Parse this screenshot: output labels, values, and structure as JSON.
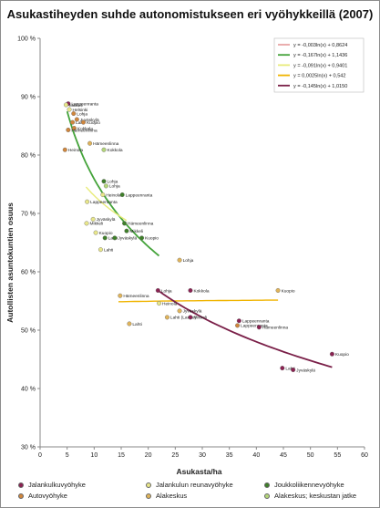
{
  "chart_data": {
    "type": "scatter",
    "title": "Asukastiheyden suhde autonomistukseen eri vyöhykkeillä (2007)",
    "xlabel": "Asukasta/ha",
    "ylabel": "Autollisten asuntokuntien osuus",
    "xlim": [
      0,
      60
    ],
    "ylim": [
      30,
      100
    ],
    "x_ticks": [
      "0",
      "5",
      "10",
      "15",
      "20",
      "25",
      "30",
      "35",
      "40",
      "45",
      "50",
      "55",
      "60"
    ],
    "y_ticks": [
      "30 %",
      "40 %",
      "50 %",
      "60 %",
      "70 %",
      "80 %",
      "90 %",
      "100 %"
    ],
    "grid": false,
    "zones": [
      {
        "key": "jalankulku",
        "name": "Jalankulkuvyöhyke",
        "color": "#8b2252"
      },
      {
        "key": "reuna",
        "name": "Jalankulun reunavyöhyke",
        "color": "#e8e68a"
      },
      {
        "key": "joukko",
        "name": "Joukkoliikennevyöhyke",
        "color": "#3f7f2a"
      },
      {
        "key": "auto",
        "name": "Autovyöhyke",
        "color": "#d0863c"
      },
      {
        "key": "alakeskus",
        "name": "Alakeskus",
        "color": "#e0b45a"
      },
      {
        "key": "alakeskus_jatke",
        "name": "Alakeskus; keskustan jatke",
        "color": "#b4d67a"
      }
    ],
    "trendlines": [
      {
        "label": "y = -0,003ln(x) + 0,8624",
        "color": "#e8a6a6"
      },
      {
        "label": "y = -0,167ln(x) + 1,1436",
        "color": "#44a33a"
      },
      {
        "label": "y = -0,091ln(x) + 0,9401",
        "color": "#e8eb7a"
      },
      {
        "label": "y = 0,0025ln(x) + 0,542",
        "color": "#f0b400"
      },
      {
        "label": "y = -0,145ln(x) + 1,0150",
        "color": "#7a1f48"
      }
    ],
    "points": [
      {
        "label": "Lappeenranta",
        "x": 5.2,
        "y": 88.8,
        "zone": "jalankulku"
      },
      {
        "label": "Helsinki",
        "x": 5.4,
        "y": 87.8,
        "zone": "reuna"
      },
      {
        "label": "Lohja",
        "x": 6.2,
        "y": 87.1,
        "zone": "auto"
      },
      {
        "label": "Mikkeli",
        "x": 4.8,
        "y": 88.6,
        "zone": "reuna"
      },
      {
        "label": "Jyväskylä",
        "x": 6.8,
        "y": 86.1,
        "zone": "auto"
      },
      {
        "label": "Lahti",
        "x": 6.0,
        "y": 85.6,
        "zone": "auto"
      },
      {
        "label": "Kuopio",
        "x": 8.0,
        "y": 85.6,
        "zone": "auto"
      },
      {
        "label": "Kokkola",
        "x": 6.3,
        "y": 84.6,
        "zone": "auto"
      },
      {
        "label": "Hämeenlinna",
        "x": 5.2,
        "y": 84.3,
        "zone": "auto"
      },
      {
        "label": "Hämeenlinna",
        "x": 9.2,
        "y": 82.0,
        "zone": "alakeskus"
      },
      {
        "label": "Heinola",
        "x": 4.6,
        "y": 80.9,
        "zone": "auto"
      },
      {
        "label": "Kokkola",
        "x": 11.8,
        "y": 80.9,
        "zone": "alakeskus_jatke"
      },
      {
        "label": "Lohja",
        "x": 11.8,
        "y": 75.5,
        "zone": "joukko"
      },
      {
        "label": "Lohja",
        "x": 12.2,
        "y": 74.7,
        "zone": "alakeskus_jatke"
      },
      {
        "label": "Heinola",
        "x": 11.6,
        "y": 73.2,
        "zone": "reuna"
      },
      {
        "label": "Lappeenranta",
        "x": 15.2,
        "y": 73.2,
        "zone": "joukko"
      },
      {
        "label": "Lappeenranta",
        "x": 8.7,
        "y": 72.0,
        "zone": "reuna"
      },
      {
        "label": "Jyväskylä",
        "x": 9.8,
        "y": 69.0,
        "zone": "reuna"
      },
      {
        "label": "Mikkeli",
        "x": 8.6,
        "y": 68.3,
        "zone": "reuna"
      },
      {
        "label": "Hämeenlinna",
        "x": 15.6,
        "y": 68.3,
        "zone": "joukko"
      },
      {
        "label": "Mikkeli",
        "x": 16.0,
        "y": 67.0,
        "zone": "joukko"
      },
      {
        "label": "Kuopio",
        "x": 10.3,
        "y": 66.7,
        "zone": "reuna"
      },
      {
        "label": "Lahti",
        "x": 12.0,
        "y": 65.8,
        "zone": "joukko"
      },
      {
        "label": "Jyväskylä",
        "x": 13.8,
        "y": 65.8,
        "zone": "joukko"
      },
      {
        "label": "Kuopio",
        "x": 18.8,
        "y": 65.8,
        "zone": "joukko"
      },
      {
        "label": "Lahti",
        "x": 11.2,
        "y": 63.8,
        "zone": "reuna"
      },
      {
        "label": "Lohja",
        "x": 25.8,
        "y": 62.0,
        "zone": "alakeskus"
      },
      {
        "label": "Hämeenlinna",
        "x": 14.8,
        "y": 55.9,
        "zone": "alakeskus"
      },
      {
        "label": "Lohja",
        "x": 21.8,
        "y": 56.8,
        "zone": "jalankulku"
      },
      {
        "label": "Kokkola",
        "x": 27.8,
        "y": 56.8,
        "zone": "jalankulku"
      },
      {
        "label": "Kuopio",
        "x": 44.0,
        "y": 56.8,
        "zone": "alakeskus"
      },
      {
        "label": "Heinola",
        "x": 22.0,
        "y": 54.6,
        "zone": "reuna"
      },
      {
        "label": "Jyväskylä",
        "x": 25.8,
        "y": 53.3,
        "zone": "alakeskus"
      },
      {
        "label": "Lahti (Laune)",
        "x": 23.5,
        "y": 52.2,
        "zone": "alakeskus"
      },
      {
        "label": "Mikkeli",
        "x": 27.8,
        "y": 52.2,
        "zone": "jalankulku"
      },
      {
        "label": "Lappeenranta",
        "x": 36.8,
        "y": 51.6,
        "zone": "jalankulku"
      },
      {
        "label": "Lahti",
        "x": 16.5,
        "y": 51.1,
        "zone": "alakeskus"
      },
      {
        "label": "Lappeenranta",
        "x": 36.5,
        "y": 50.8,
        "zone": "auto"
      },
      {
        "label": "Hämeenlinna",
        "x": 40.5,
        "y": 50.5,
        "zone": "jalankulku"
      },
      {
        "label": "Kuopio",
        "x": 54.0,
        "y": 45.9,
        "zone": "jalankulku"
      },
      {
        "label": "Lahti",
        "x": 44.8,
        "y": 43.5,
        "zone": "jalankulku"
      },
      {
        "label": "Jyväskylä",
        "x": 46.8,
        "y": 43.2,
        "zone": "jalankulku"
      }
    ]
  }
}
